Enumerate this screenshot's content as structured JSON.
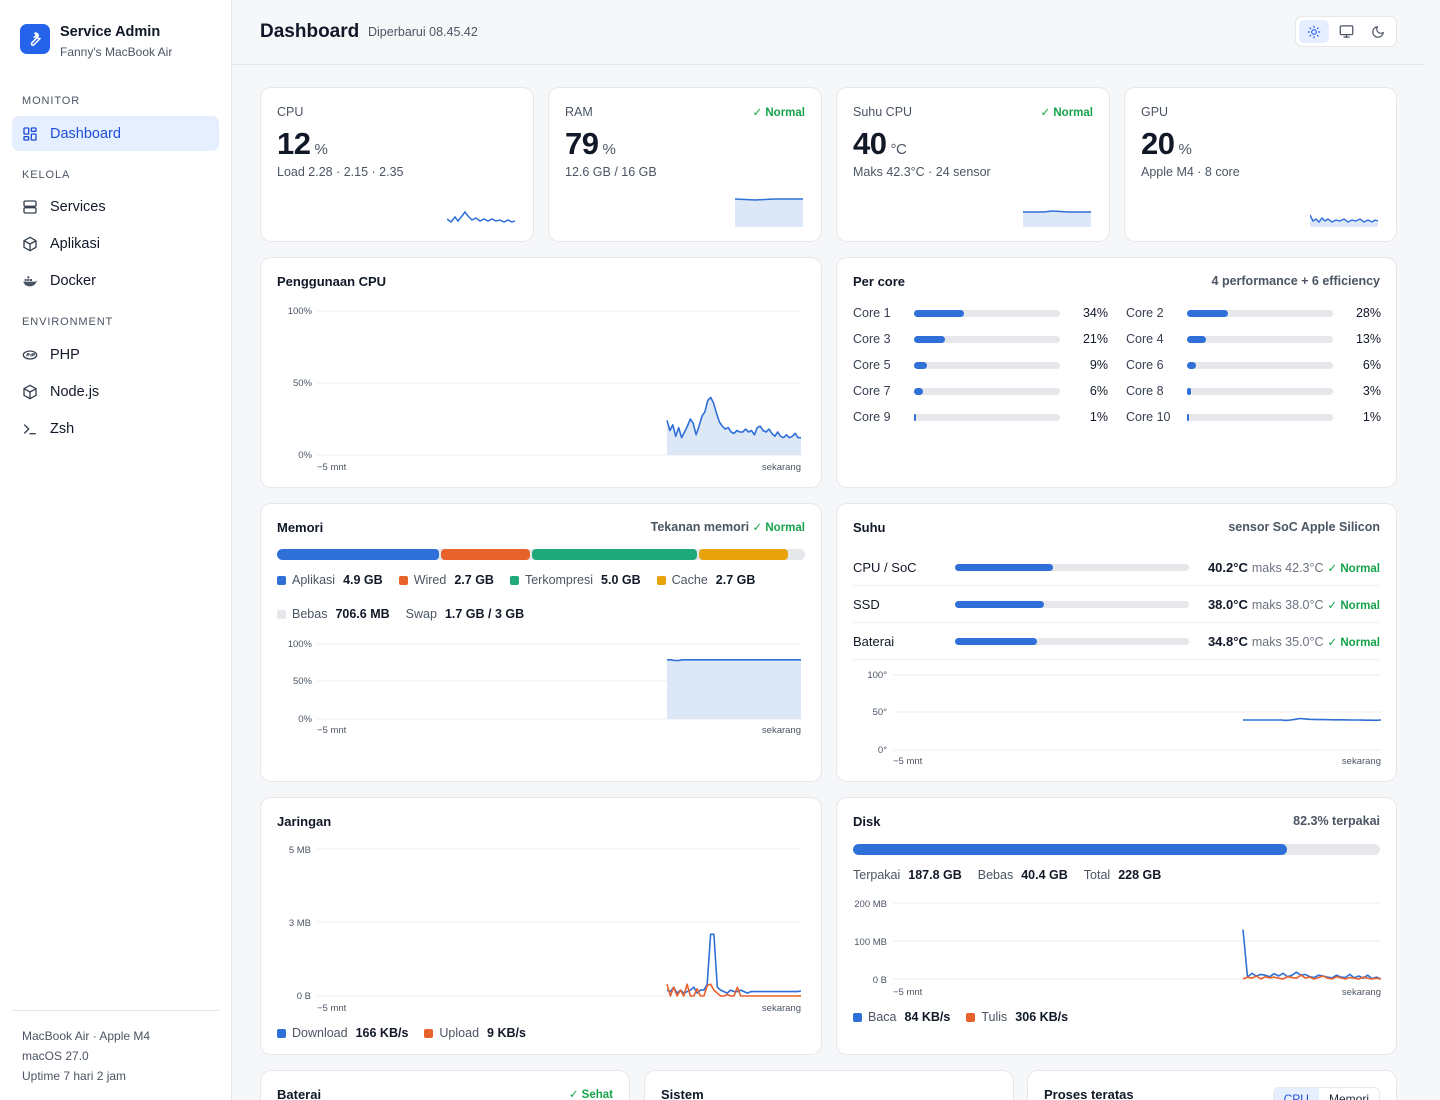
{
  "sidebar": {
    "app_title": "Service Admin",
    "app_subtitle": "Fanny's MacBook Air",
    "sections": {
      "monitor": "MONITOR",
      "manage": "KELOLA",
      "environment": "ENVIRONMENT"
    },
    "items": {
      "dashboard": "Dashboard",
      "services": "Services",
      "apps": "Aplikasi",
      "docker": "Docker",
      "php": "PHP",
      "node": "Node.js",
      "zsh": "Zsh"
    },
    "footer": {
      "device": "MacBook Air · Apple M4",
      "os": "macOS 27.0",
      "uptime": "Uptime 7 hari 2 jam"
    }
  },
  "header": {
    "title": "Dashboard",
    "updated": "Diperbarui 08.45.42",
    "theme_active": "light"
  },
  "colors": {
    "accent": "#2f6fd8",
    "ok": "#16a34a",
    "orange": "#e8622c",
    "green": "#1fa97a",
    "amber": "#e8a20c"
  },
  "stats": {
    "cpu": {
      "label": "CPU",
      "value": "12",
      "unit": "%",
      "sub": "Load 2.28 · 2.15 · 2.35",
      "status": ""
    },
    "ram": {
      "label": "RAM",
      "value": "79",
      "unit": "%",
      "sub": "12.6 GB / 16 GB",
      "status": "✓ Normal"
    },
    "temp": {
      "label": "Suhu CPU",
      "value": "40",
      "unit": "°C",
      "sub": "Maks 42.3°C · 24 sensor",
      "status": "✓ Normal"
    },
    "gpu": {
      "label": "GPU",
      "value": "20",
      "unit": "%",
      "sub": "Apple M4 · 8 core",
      "status": ""
    }
  },
  "cpu_usage": {
    "title": "Penggunaan CPU",
    "y_ticks": [
      "100%",
      "50%",
      "0%"
    ],
    "x_start": "−5 mnt",
    "x_end": "sekarang"
  },
  "per_core": {
    "title": "Per core",
    "summary": "4 performance + 6 efficiency",
    "cores": [
      {
        "name": "Core 1",
        "pct": "34%",
        "value": 34
      },
      {
        "name": "Core 2",
        "pct": "28%",
        "value": 28
      },
      {
        "name": "Core 3",
        "pct": "21%",
        "value": 21
      },
      {
        "name": "Core 4",
        "pct": "13%",
        "value": 13
      },
      {
        "name": "Core 5",
        "pct": "9%",
        "value": 9
      },
      {
        "name": "Core 6",
        "pct": "6%",
        "value": 6
      },
      {
        "name": "Core 7",
        "pct": "6%",
        "value": 6
      },
      {
        "name": "Core 8",
        "pct": "3%",
        "value": 3
      },
      {
        "name": "Core 9",
        "pct": "1%",
        "value": 1
      },
      {
        "name": "Core 10",
        "pct": "1%",
        "value": 1
      }
    ]
  },
  "memory": {
    "title": "Memori",
    "pressure_label": "Tekanan memori",
    "pressure": "✓ Normal",
    "segments": [
      {
        "name": "Aplikasi",
        "value": "4.9 GB",
        "gb": 4.9,
        "color": "#2f6fd8"
      },
      {
        "name": "Wired",
        "value": "2.7 GB",
        "gb": 2.7,
        "color": "#e8622c"
      },
      {
        "name": "Terkompresi",
        "value": "5.0 GB",
        "gb": 5.0,
        "color": "#1fa97a"
      },
      {
        "name": "Cache",
        "value": "2.7 GB",
        "gb": 2.7,
        "color": "#e8a20c"
      }
    ],
    "free_label": "Bebas",
    "free_value": "706.6 MB",
    "swap_label": "Swap",
    "swap_value": "1.7 GB / 3 GB",
    "y_ticks": [
      "100%",
      "50%",
      "0%"
    ],
    "x_start": "−5 mnt",
    "x_end": "sekarang"
  },
  "temperature": {
    "title": "Suhu",
    "source": "sensor SoC Apple Silicon",
    "sensors": [
      {
        "name": "CPU / SoC",
        "value": "40.2°C",
        "max": "maks 42.3°C",
        "status": "✓ Normal",
        "level": 0.42
      },
      {
        "name": "SSD",
        "value": "38.0°C",
        "max": "maks 38.0°C",
        "status": "✓ Normal",
        "level": 0.38
      },
      {
        "name": "Baterai",
        "value": "34.8°C",
        "max": "maks 35.0°C",
        "status": "✓ Normal",
        "level": 0.35
      }
    ],
    "y_ticks": [
      "100°",
      "50°",
      "0°"
    ],
    "x_start": "−5 mnt",
    "x_end": "sekarang"
  },
  "network": {
    "title": "Jaringan",
    "y_ticks": [
      "5 MB",
      "3 MB",
      "0 B"
    ],
    "x_start": "−5 mnt",
    "x_end": "sekarang",
    "download_label": "Download",
    "download_value": "166 KB/s",
    "upload_label": "Upload",
    "upload_value": "9 KB/s"
  },
  "disk": {
    "title": "Disk",
    "used_pct_label": "82.3% terpakai",
    "used_fraction": 0.823,
    "used_label": "Terpakai",
    "used_value": "187.8 GB",
    "free_label": "Bebas",
    "free_value": "40.4 GB",
    "total_label": "Total",
    "total_value": "228 GB",
    "y_ticks": [
      "200 MB",
      "100 MB",
      "0 B"
    ],
    "x_start": "−5 mnt",
    "x_end": "sekarang",
    "read_label": "Baca",
    "read_value": "84 KB/s",
    "write_label": "Tulis",
    "write_value": "306 KB/s"
  },
  "battery": {
    "title": "Baterai",
    "status": "✓ Sehat"
  },
  "system": {
    "title": "Sistem"
  },
  "top_processes": {
    "title": "Proses teratas",
    "tabs": [
      "CPU",
      "Memori"
    ],
    "active_tab": "CPU"
  },
  "chart_data": [
    {
      "type": "area",
      "title": "Penggunaan CPU",
      "ylim": [
        0,
        100
      ],
      "x_range": [
        "−5 mnt",
        "sekarang"
      ],
      "series": [
        {
          "values": [
            24,
            17,
            21,
            13,
            19,
            12,
            16,
            20,
            25,
            22,
            14,
            20,
            27,
            30,
            38,
            40,
            36,
            29,
            23,
            20,
            18,
            19,
            16,
            15,
            17,
            16,
            16,
            18,
            16,
            17,
            14,
            19,
            20,
            17,
            16,
            18,
            15,
            13,
            16,
            13,
            12,
            14,
            12,
            13,
            15,
            12,
            12
          ]
        }
      ]
    },
    {
      "type": "area",
      "title": "Memori",
      "ylim": [
        0,
        100
      ],
      "x_range": [
        "−5 mnt",
        "sekarang"
      ],
      "series": [
        {
          "values": [
            79,
            79,
            78,
            78,
            79,
            79,
            79,
            79,
            79,
            79,
            79,
            79,
            79,
            79,
            79,
            79,
            79,
            79,
            79,
            79,
            79,
            79,
            79,
            79,
            79,
            79,
            79,
            79,
            79,
            79,
            79,
            79,
            79,
            79,
            79,
            79
          ]
        }
      ]
    },
    {
      "type": "line",
      "title": "Suhu",
      "ylim": [
        0,
        100
      ],
      "x_range": [
        "−5 mnt",
        "sekarang"
      ],
      "series": [
        {
          "values": [
            40,
            40,
            40,
            40,
            40,
            40,
            40,
            40,
            40,
            39.5,
            40,
            41,
            42,
            41.5,
            41,
            40.8,
            40.6,
            40.5,
            40.4,
            40.3,
            40.3,
            40.2,
            40.1,
            40,
            40,
            39.9,
            39.8,
            39.8,
            39.6,
            40
          ]
        }
      ]
    },
    {
      "type": "line",
      "title": "Jaringan",
      "ylim": [
        0,
        5
      ],
      "y_unit": "MB",
      "x_range": [
        "−5 mnt",
        "sekarang"
      ],
      "series": [
        {
          "name": "Download",
          "values": [
            0.2,
            0.15,
            0.3,
            0.1,
            0.2,
            0.1,
            0.15,
            0.2,
            0.3,
            0.1,
            0.2,
            0.2,
            0.4,
            2.1,
            2.1,
            0.3,
            0.2,
            0.15,
            0.1,
            0.2,
            0.15,
            0.15,
            0.2,
            0.15,
            0.1,
            0.15,
            0.15,
            0.15,
            0.15,
            0.15,
            0.15,
            0.15,
            0.15,
            0.15,
            0.15,
            0.15,
            0.15,
            0.15,
            0.15,
            0.15,
            0.17
          ]
        },
        {
          "name": "Upload",
          "values": [
            0.4,
            0,
            0.3,
            0,
            0.2,
            0,
            0.4,
            0,
            0,
            0.25,
            0,
            0,
            0.35,
            0.4,
            0.2,
            0.1,
            0,
            0,
            0.05,
            0,
            0,
            0.3,
            0,
            0,
            0,
            0,
            0,
            0,
            0,
            0,
            0,
            0,
            0,
            0,
            0,
            0,
            0,
            0,
            0,
            0,
            0.01
          ]
        }
      ]
    },
    {
      "type": "line",
      "title": "Disk",
      "ylim": [
        0,
        200
      ],
      "y_unit": "MB",
      "x_range": [
        "−5 mnt",
        "sekarang"
      ],
      "series": [
        {
          "name": "Baca",
          "values": [
            130,
            5,
            15,
            8,
            12,
            10,
            6,
            14,
            8,
            15,
            6,
            10,
            18,
            10,
            12,
            6,
            4,
            10,
            8,
            5,
            3,
            10,
            5,
            4,
            12,
            3,
            8,
            2,
            10,
            1,
            5,
            0
          ]
        },
        {
          "name": "Tulis",
          "values": [
            0,
            5,
            2,
            8,
            0,
            6,
            3,
            5,
            2,
            0,
            6,
            4,
            2,
            10,
            3,
            5,
            0,
            4,
            8,
            2,
            0,
            6,
            3,
            0,
            4,
            2,
            0,
            5,
            2,
            0,
            2,
            0
          ]
        }
      ]
    }
  ]
}
